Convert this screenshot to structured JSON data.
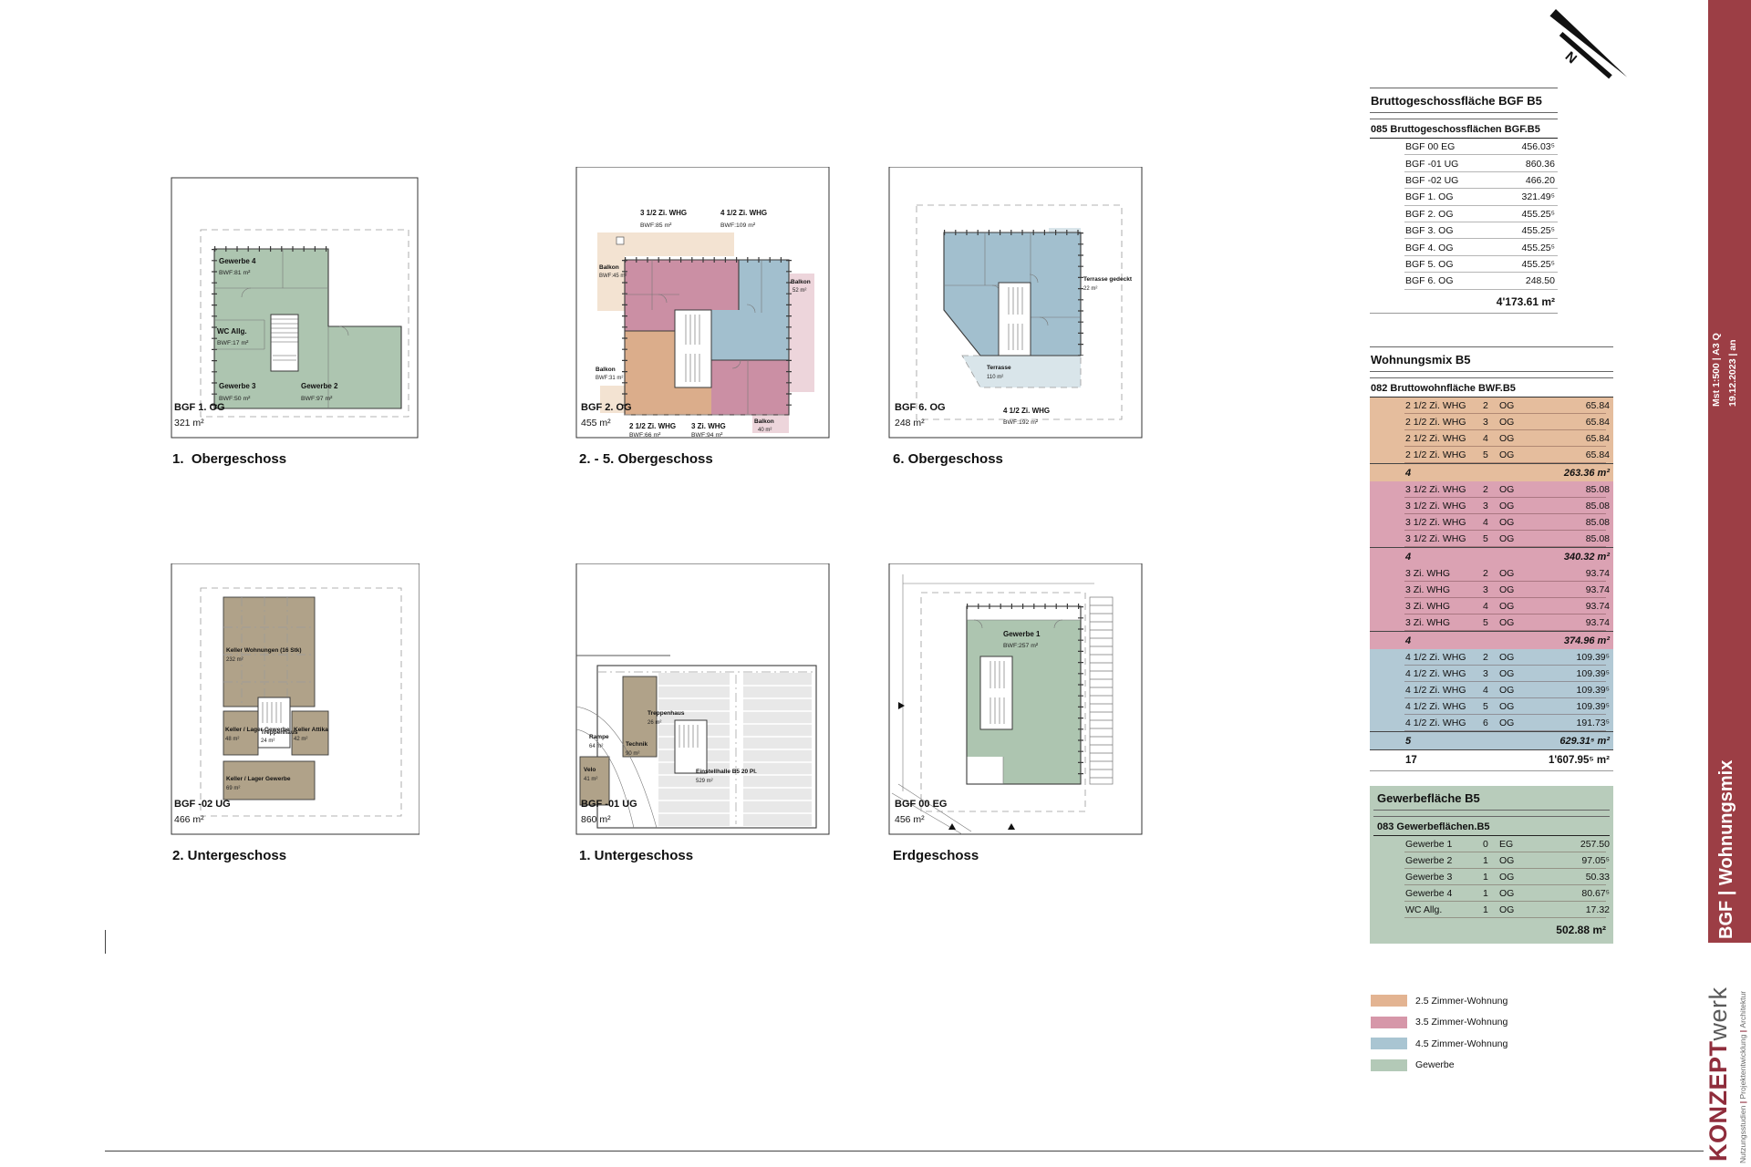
{
  "plans": {
    "og1": {
      "caption": "BGF 1. OG",
      "area": "321 m²",
      "heading": "1.  Obergeschoss",
      "rooms": [
        {
          "name": "Gewerbe 4",
          "area": "BWF:81 m²"
        },
        {
          "name": "WC Allg.",
          "area": "BWF:17 m²"
        },
        {
          "name": "Gewerbe 3",
          "area": "BWF:50 m²"
        },
        {
          "name": "Gewerbe 2",
          "area": "BWF:97 m²"
        }
      ]
    },
    "og25": {
      "caption": "BGF 2. OG",
      "area": "455 m²",
      "heading": "2. - 5. Obergeschoss",
      "units": [
        {
          "name": "3 1/2 Zi. WHG",
          "area": "BWF:85 m²"
        },
        {
          "name": "4 1/2 Zi. WHG",
          "area": "BWF:109 m²"
        },
        {
          "name": "2 1/2 Zi. WHG",
          "area": "BWF:66 m²"
        },
        {
          "name": "3 Zi. WHG",
          "area": "BWF:94 m²"
        }
      ],
      "balconies": [
        {
          "name": "Balkon",
          "area": "BWF:45 m²"
        },
        {
          "name": "Balkon",
          "area": "52 m²"
        },
        {
          "name": "Balkon",
          "area": "BWF:31 m²"
        },
        {
          "name": "Balkon",
          "area": "40 m²"
        }
      ]
    },
    "og6": {
      "caption": "BGF 6. OG",
      "area": "248 m²",
      "heading": "6. Obergeschoss",
      "unit": {
        "name": "4 1/2 Zi. WHG",
        "area": "BWF:192 m²"
      },
      "terraces": [
        {
          "name": "Terrasse gedeckt",
          "area": "22 m²"
        },
        {
          "name": "Terrasse",
          "area": "110 m²"
        }
      ]
    },
    "ug2": {
      "caption": "BGF -02 UG",
      "area": "466 m²",
      "heading": "2. Untergeschoss",
      "rooms": [
        {
          "name": "Keller Wohnungen (16 Stk)",
          "area": "232 m²"
        },
        {
          "name": "Treppenhaus",
          "area": "24 m²"
        },
        {
          "name": "Keller / Lager Gewerbe",
          "area": "48 m²"
        },
        {
          "name": "Keller Attika",
          "area": "42 m²"
        },
        {
          "name": "Keller / Lager Gewerbe",
          "area": "69 m²"
        }
      ]
    },
    "ug1": {
      "caption": "BGF -01 UG",
      "area": "860 m²",
      "heading": "1. Untergeschoss",
      "rooms": [
        {
          "name": "Technik",
          "area": "90 m²"
        },
        {
          "name": "Rampe",
          "area": "64 m²"
        },
        {
          "name": "Velo",
          "area": "41 m²"
        },
        {
          "name": "Treppenhaus",
          "area": "26 m²"
        },
        {
          "name": "Einstellhalle B5 20 Pl.",
          "area": "529 m²"
        }
      ]
    },
    "eg": {
      "caption": "BGF 00 EG",
      "area": "456 m²",
      "heading": "Erdgeschoss",
      "rooms": [
        {
          "name": "Gewerbe 1",
          "area": "BWF:257 m²"
        }
      ]
    }
  },
  "tables": {
    "bgf": {
      "title": "Bruttogeschossfläche BGF B5",
      "subtitle": "085 Bruttogeschossflächen BGF.B5",
      "rows": [
        {
          "label": "BGF 00 EG",
          "value": "456.03⁵"
        },
        {
          "label": "BGF -01 UG",
          "value": "860.36"
        },
        {
          "label": "BGF -02 UG",
          "value": "466.20"
        },
        {
          "label": "BGF 1. OG",
          "value": "321.49⁵"
        },
        {
          "label": "BGF 2. OG",
          "value": "455.25⁵"
        },
        {
          "label": "BGF 3. OG",
          "value": "455.25⁵"
        },
        {
          "label": "BGF 4. OG",
          "value": "455.25⁵"
        },
        {
          "label": "BGF 5. OG",
          "value": "455.25⁵"
        },
        {
          "label": "BGF 6. OG",
          "value": "248.50"
        }
      ],
      "total": "4'173.61 m²"
    },
    "wohnungsmix": {
      "title": "Wohnungsmix B5",
      "subtitle": "082 Bruttowohnfläche BWF.B5",
      "groups": [
        {
          "color": "#E5BD9D",
          "rows": [
            {
              "type": "2 1/2 Zi. WHG",
              "floor": "2",
              "floor_label": "OG",
              "value": "65.84"
            },
            {
              "type": "2 1/2 Zi. WHG",
              "floor": "3",
              "floor_label": "OG",
              "value": "65.84"
            },
            {
              "type": "2 1/2 Zi. WHG",
              "floor": "4",
              "floor_label": "OG",
              "value": "65.84"
            },
            {
              "type": "2 1/2 Zi. WHG",
              "floor": "5",
              "floor_label": "OG",
              "value": "65.84"
            }
          ],
          "count": "4",
          "subtotal": "263.36 m²"
        },
        {
          "color": "#DBA2B3",
          "rows": [
            {
              "type": "3 1/2 Zi. WHG",
              "floor": "2",
              "floor_label": "OG",
              "value": "85.08"
            },
            {
              "type": "3 1/2 Zi. WHG",
              "floor": "3",
              "floor_label": "OG",
              "value": "85.08"
            },
            {
              "type": "3 1/2 Zi. WHG",
              "floor": "4",
              "floor_label": "OG",
              "value": "85.08"
            },
            {
              "type": "3 1/2 Zi. WHG",
              "floor": "5",
              "floor_label": "OG",
              "value": "85.08"
            }
          ],
          "count": "4",
          "subtotal": "340.32 m²"
        },
        {
          "color": "#DBA2B3",
          "rows": [
            {
              "type": "3 Zi. WHG",
              "floor": "2",
              "floor_label": "OG",
              "value": "93.74"
            },
            {
              "type": "3 Zi. WHG",
              "floor": "3",
              "floor_label": "OG",
              "value": "93.74"
            },
            {
              "type": "3 Zi. WHG",
              "floor": "4",
              "floor_label": "OG",
              "value": "93.74"
            },
            {
              "type": "3 Zi. WHG",
              "floor": "5",
              "floor_label": "OG",
              "value": "93.74"
            }
          ],
          "count": "4",
          "subtotal": "374.96 m²"
        },
        {
          "color": "#B2C9D5",
          "rows": [
            {
              "type": "4 1/2 Zi. WHG",
              "floor": "2",
              "floor_label": "OG",
              "value": "109.39⁵"
            },
            {
              "type": "4 1/2 Zi. WHG",
              "floor": "3",
              "floor_label": "OG",
              "value": "109.39⁵"
            },
            {
              "type": "4 1/2 Zi. WHG",
              "floor": "4",
              "floor_label": "OG",
              "value": "109.39⁵"
            },
            {
              "type": "4 1/2 Zi. WHG",
              "floor": "5",
              "floor_label": "OG",
              "value": "109.39⁵"
            },
            {
              "type": "4 1/2 Zi. WHG",
              "floor": "6",
              "floor_label": "OG",
              "value": "191.73⁵"
            }
          ],
          "count": "5",
          "subtotal": "629.31⁵ m²"
        }
      ],
      "total_count": "17",
      "total": "1'607.95⁵ m²"
    },
    "gewerbe": {
      "title": "Gewerbefläche B5",
      "subtitle": "083 Gewerbeflächen.B5",
      "color": "#B8CCBB",
      "rows": [
        {
          "type": "Gewerbe 1",
          "floor": "0",
          "floor_label": "EG",
          "value": "257.50"
        },
        {
          "type": "Gewerbe 2",
          "floor": "1",
          "floor_label": "OG",
          "value": "97.05⁵"
        },
        {
          "type": "Gewerbe 3",
          "floor": "1",
          "floor_label": "OG",
          "value": "50.33"
        },
        {
          "type": "Gewerbe 4",
          "floor": "1",
          "floor_label": "OG",
          "value": "80.67⁵"
        },
        {
          "type": "WC Allg.",
          "floor": "1",
          "floor_label": "OG",
          "value": "17.32"
        }
      ],
      "total": "502.88 m²"
    }
  },
  "legend": [
    {
      "label": "2.5 Zimmer-Wohnung",
      "color": "#E3B492"
    },
    {
      "label": "3.5 Zimmer-Wohnung",
      "color": "#D697A9"
    },
    {
      "label": "4.5 Zimmer-Wohnung",
      "color": "#A9C5D2"
    },
    {
      "label": "Gewerbe",
      "color": "#B3C9B7"
    }
  ],
  "sidebar": {
    "scale": "Mst 1:500 | A3 Q",
    "date": "19.12.2023 | an",
    "title": "BGF | Wohnungsmix",
    "brand_bold": "KONZEPT",
    "brand_light": "werk",
    "tagline_1": "Nutzungsstudien",
    "tagline_2": "Projektentwicklung",
    "tagline_3": "Architektur",
    "accent": "#9C3E45"
  },
  "north_label": "N"
}
